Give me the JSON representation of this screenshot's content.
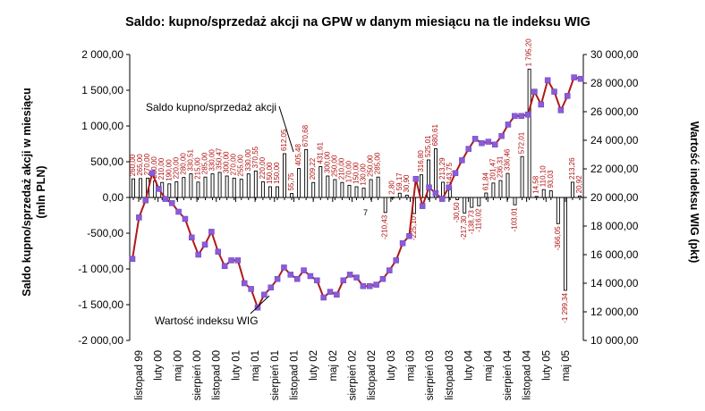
{
  "chart_data": {
    "type": "bar+line",
    "title": "Saldo: kupno/sprzedaż akcji na GPW w danym miesiącu na tle indeksu WIG",
    "ylabel_left": [
      "Saldo kupno/sprzedaż akcji w miesiącu",
      "(mln PLN)"
    ],
    "ylabel_right": "Wartość indeksu WIG (pkt)",
    "ylim_left": [
      -2000,
      2000
    ],
    "ylim_right": [
      10000,
      30000
    ],
    "yticks_left": [
      "-2 000,00",
      "-1 500,00",
      "-1 000,00",
      "-500,00",
      "0,00",
      "500,00",
      "1 000,00",
      "1 500,00",
      "2 000,00"
    ],
    "yticks_right": [
      "10 000,00",
      "12 000,00",
      "14 000,00",
      "16 000,00",
      "18 000,00",
      "20 000,00",
      "22 000,00",
      "24 000,00",
      "26 000,00",
      "28 000,00",
      "30 000,00"
    ],
    "x_labels": [
      "listopad 99",
      "luty 00",
      "maj 00",
      "sierpień 00",
      "listopad 00",
      "luty 01",
      "maj 01",
      "sierpień 01",
      "listopad 01",
      "luty 02",
      "maj 02",
      "sierpień 02",
      "listopad 02",
      "luty 03",
      "maj 03",
      "sierpień 03",
      "listopad 03",
      "luty 04",
      "maj 04",
      "sierpień 04",
      "listopad 04",
      "luty 05",
      "maj 05"
    ],
    "annotations": {
      "bars_series": "Saldo kupno/sprzedaż akcji",
      "line_series": "Wartość indeksu WIG",
      "stray_label": "7"
    },
    "bars": [
      {
        "value": 260.0,
        "label": "260,00"
      },
      {
        "value": 265.0,
        "label": "265,00"
      },
      {
        "value": 270.0,
        "label": "270,00"
      },
      {
        "value": 230.0,
        "label": "230,00"
      },
      {
        "value": 210.0,
        "label": "210,00"
      },
      {
        "value": 190.0,
        "label": "190,00"
      },
      {
        "value": 220.0,
        "label": "220,00"
      },
      {
        "value": 280.0,
        "label": "280,00"
      },
      {
        "value": 330.51,
        "label": "330,51"
      },
      {
        "value": 215.0,
        "label": "215,00"
      },
      {
        "value": 285.0,
        "label": "285,00"
      },
      {
        "value": 330.0,
        "label": "330,00"
      },
      {
        "value": 350.47,
        "label": "350,47"
      },
      {
        "value": 300.0,
        "label": "300,00"
      },
      {
        "value": 270.0,
        "label": "270,00"
      },
      {
        "value": 255.0,
        "label": "255,00"
      },
      {
        "value": 330.0,
        "label": "330,00"
      },
      {
        "value": 370.55,
        "label": "370,55"
      },
      {
        "value": 220.0,
        "label": "220,00"
      },
      {
        "value": 150.0,
        "label": "150,00"
      },
      {
        "value": 150.0,
        "label": "150,00"
      },
      {
        "value": 612.05,
        "label": "612,05"
      },
      {
        "value": 55.75,
        "label": "55,75"
      },
      {
        "value": 405.48,
        "label": "405,48"
      },
      {
        "value": 670.68,
        "label": "670,68"
      },
      {
        "value": 209.22,
        "label": "209,22"
      },
      {
        "value": 431.61,
        "label": "431,61"
      },
      {
        "value": 300.0,
        "label": "300,00"
      },
      {
        "value": 250.0,
        "label": "250,00"
      },
      {
        "value": 210.0,
        "label": "210,00"
      },
      {
        "value": 170.0,
        "label": "170,00"
      },
      {
        "value": 150.0,
        "label": "150,00"
      },
      {
        "value": 130.0,
        "label": "130,00"
      },
      {
        "value": 250.0,
        "label": "250,00"
      },
      {
        "value": 285.0,
        "label": "285,00"
      },
      {
        "value": -210.43,
        "label": "-210,43"
      },
      {
        "value": 2.8,
        "label": "2,80"
      },
      {
        "value": 59.17,
        "label": "59,17"
      },
      {
        "value": 30.9,
        "label": "30,90"
      },
      {
        "value": -225.1,
        "label": "-225,10"
      },
      {
        "value": 316.8,
        "label": "316,80"
      },
      {
        "value": 525.01,
        "label": "525,01"
      },
      {
        "value": 680.61,
        "label": "680,61"
      },
      {
        "value": 213.29,
        "label": "213,29"
      },
      {
        "value": 143.75,
        "label": "143,75"
      },
      {
        "value": -30.5,
        "label": "-30,50"
      },
      {
        "value": -217.3,
        "label": "-217,30"
      },
      {
        "value": -138.73,
        "label": "-138,73"
      },
      {
        "value": -116.02,
        "label": "-116,02"
      },
      {
        "value": 61.84,
        "label": "61,84"
      },
      {
        "value": 201.47,
        "label": "201,47"
      },
      {
        "value": 236.31,
        "label": "236,31"
      },
      {
        "value": 336.46,
        "label": "336,46"
      },
      {
        "value": -103.01,
        "label": "-103,01"
      },
      {
        "value": 572.01,
        "label": "572,01"
      },
      {
        "value": 1795.2,
        "label": "1 795,20"
      },
      {
        "value": 14.58,
        "label": "14,58"
      },
      {
        "value": 110.1,
        "label": "110,10"
      },
      {
        "value": 93.03,
        "label": "93,03"
      },
      {
        "value": -366.05,
        "label": "-366,05"
      },
      {
        "value": -1299.34,
        "label": "-1 299,34"
      },
      {
        "value": 213.26,
        "label": "213,26"
      },
      {
        "value": 20.92,
        "label": "20,92"
      }
    ],
    "wig": [
      15700,
      18600,
      19800,
      21700,
      20600,
      19900,
      19600,
      19000,
      18500,
      17200,
      16000,
      16700,
      17600,
      16200,
      15200,
      15600,
      15600,
      14000,
      13600,
      12300,
      13200,
      13700,
      14300,
      15100,
      14600,
      14300,
      14900,
      14500,
      14200,
      13000,
      13400,
      13200,
      14200,
      14600,
      14400,
      13800,
      13800,
      13900,
      14300,
      14900,
      15600,
      16800,
      17300,
      21300,
      19400,
      20700,
      20300,
      19900,
      20700,
      21700,
      22600,
      23400,
      24100,
      23800,
      23900,
      23700,
      24300,
      25100,
      25700,
      25700,
      25800,
      27400,
      26500,
      28200,
      27400,
      26100,
      27100,
      28400,
      28300
    ]
  }
}
